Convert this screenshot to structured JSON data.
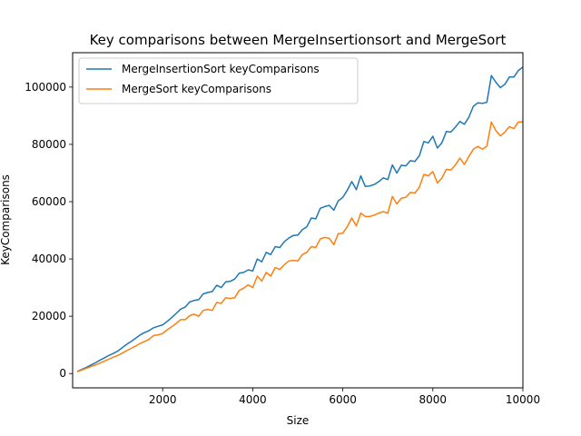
{
  "chart_data": {
    "type": "line",
    "title": "Key comparisons between MergeInsertionsort and MergeSort",
    "xlabel": "Size",
    "ylabel": "KeyComparisons",
    "xlim": [
      0,
      10000
    ],
    "ylim": [
      -5000,
      112000
    ],
    "xticks": [
      2000,
      4000,
      6000,
      8000,
      10000
    ],
    "xtick_labels": [
      "2000",
      "4000",
      "6000",
      "8000",
      "10000"
    ],
    "yticks": [
      0,
      20000,
      40000,
      60000,
      80000,
      100000
    ],
    "ytick_labels": [
      "0",
      "20000",
      "40000",
      "60000",
      "80000",
      "100000"
    ],
    "grid": false,
    "legend_position": "top-left",
    "x": [
      100,
      200,
      300,
      400,
      500,
      600,
      700,
      800,
      900,
      1000,
      1100,
      1200,
      1300,
      1400,
      1500,
      1600,
      1700,
      1800,
      1900,
      2000,
      2100,
      2200,
      2300,
      2400,
      2500,
      2600,
      2700,
      2800,
      2900,
      3000,
      3100,
      3200,
      3300,
      3400,
      3500,
      3600,
      3700,
      3800,
      3900,
      4000,
      4100,
      4200,
      4300,
      4400,
      4500,
      4600,
      4700,
      4800,
      4900,
      5000,
      5100,
      5200,
      5300,
      5400,
      5500,
      5600,
      5700,
      5800,
      5900,
      6000,
      6100,
      6200,
      6300,
      6400,
      6500,
      6600,
      6700,
      6800,
      6900,
      7000,
      7100,
      7200,
      7300,
      7400,
      7500,
      7600,
      7700,
      7800,
      7900,
      8000,
      8100,
      8200,
      8300,
      8400,
      8500,
      8600,
      8700,
      8800,
      8900,
      9000,
      9100,
      9200,
      9300,
      9400,
      9500,
      9600,
      9700,
      9800,
      9900,
      10000
    ],
    "series": [
      {
        "name": "MergeInsertionSort keyComparisons",
        "color": "#1f77b4",
        "values": [
          700,
          1400,
          2100,
          2900,
          3700,
          4600,
          5400,
          6300,
          7000,
          7800,
          9000,
          10200,
          11200,
          12300,
          13500,
          14300,
          15000,
          16000,
          16500,
          17000,
          18200,
          19500,
          21000,
          22500,
          23200,
          25000,
          25500,
          25800,
          27800,
          28300,
          28600,
          30800,
          30000,
          32000,
          32200,
          33000,
          35000,
          35300,
          36200,
          35800,
          40000,
          39000,
          42300,
          41500,
          44300,
          44000,
          46000,
          47300,
          48200,
          48300,
          50200,
          51200,
          54300,
          54000,
          57700,
          58300,
          58700,
          57000,
          60300,
          61500,
          64000,
          67000,
          64200,
          69000,
          65300,
          65500,
          66000,
          67000,
          68300,
          67700,
          72800,
          70000,
          72700,
          72500,
          74300,
          74000,
          76000,
          81000,
          80500,
          82800,
          78700,
          80500,
          84500,
          84300,
          86000,
          88000,
          87000,
          89500,
          93300,
          94500,
          94300,
          94700,
          104000,
          101700,
          99800,
          101000,
          103500,
          103500,
          105800,
          107000
        ]
      },
      {
        "name": "MergeSort keyComparisons",
        "color": "#ff7f0e",
        "values": [
          600,
          1200,
          1800,
          2400,
          3000,
          3600,
          4300,
          5000,
          5700,
          6300,
          7100,
          8000,
          8800,
          9600,
          10500,
          11200,
          12000,
          13300,
          13500,
          14000,
          15300,
          16300,
          17500,
          18800,
          18800,
          20200,
          20700,
          20000,
          22000,
          22400,
          22000,
          24800,
          24500,
          26500,
          26200,
          26500,
          29000,
          29800,
          31000,
          30000,
          34000,
          32300,
          35300,
          34000,
          37000,
          36300,
          38000,
          39300,
          39500,
          39300,
          41500,
          42300,
          44300,
          44000,
          47000,
          47500,
          47200,
          45000,
          48800,
          49000,
          51300,
          54300,
          51500,
          56000,
          54800,
          54800,
          55300,
          56000,
          56500,
          56000,
          61800,
          59200,
          61200,
          61500,
          63200,
          63000,
          65000,
          69500,
          69000,
          70500,
          66500,
          68200,
          71300,
          71000,
          72800,
          75200,
          73000,
          75800,
          78300,
          79300,
          78300,
          79400,
          87800,
          84800,
          83000,
          84300,
          86200,
          85500,
          87800,
          87800
        ]
      }
    ]
  }
}
